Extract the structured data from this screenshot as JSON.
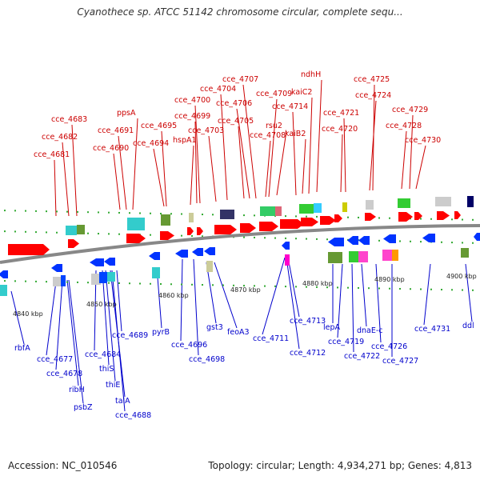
{
  "title": "Cyanothece sp. ATCC 51142 chromosome circular, complete sequ...",
  "footer": {
    "accession": "Accession: NC_010546",
    "topology": "Topology: circular; Length: 4,934,271 bp; Genes: 4,813"
  },
  "colors": {
    "forward_label": "#cc0000",
    "reverse_label": "#0000cc",
    "forward_arrow": "#ff0000",
    "reverse_arrow": "#0033ff",
    "backbone": "#888888"
  },
  "ticks": [
    "4840 kbp",
    "4850 kbp",
    "4860 kbp",
    "4870 kbp",
    "4880 kbp",
    "4890 kbp",
    "4900 kbp"
  ],
  "forward_labels": [
    "cce_4681",
    "cce_4682",
    "cce_4683",
    "cce_4690",
    "cce_4691",
    "ppsA",
    "cce_4694",
    "cce_4695",
    "hspA1",
    "cce_4699",
    "cce_4700",
    "cce_4703",
    "cce_4704",
    "cce_4705",
    "cce_4706",
    "cce_4707",
    "cce_4708",
    "cce_4709",
    "rsu2",
    "cce_4714",
    "kaiB2",
    "kaiC2",
    "ndhH",
    "cce_4720",
    "cce_4721",
    "cce_4724",
    "cce_4725",
    "cce_4728",
    "cce_4729",
    "cce_4730"
  ],
  "reverse_labels": [
    "rbfA",
    "cce_4677",
    "cce_4678",
    "ribH",
    "psbZ",
    "cce_4684",
    "thiS",
    "thiE",
    "talA",
    "cce_4688",
    "cce_4689",
    "pyrB",
    "cce_4696",
    "cce_4698",
    "gst3",
    "feoA3",
    "cce_4711",
    "cce_4712",
    "cce_4713",
    "lepA",
    "cce_4719",
    "cce_4722",
    "dnaE-c",
    "cce_4726",
    "cce_4727",
    "cce_4731",
    "ddl"
  ]
}
